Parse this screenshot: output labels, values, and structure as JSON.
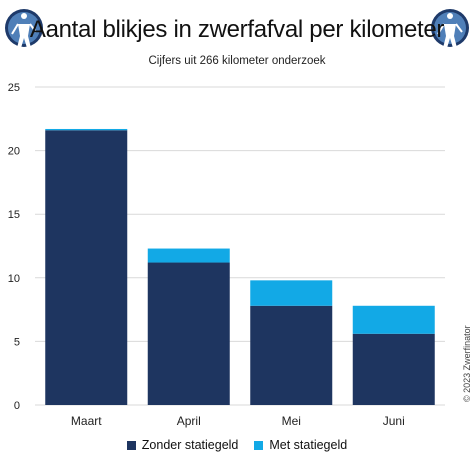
{
  "header": {
    "title": "Aantal blikjes in zwerfafval per kilometer",
    "subtitle": "Cijfers uit  266 kilometer onderzoek"
  },
  "credit": "© 2023 Zwerfinator",
  "colors": {
    "zonder": "#1e3560",
    "met": "#12a9e6",
    "grid": "#d9d9d9"
  },
  "chart_data": {
    "type": "bar",
    "stacked": true,
    "categories": [
      "Maart",
      "April",
      "Mei",
      "Juni"
    ],
    "series": [
      {
        "name": "Zonder statiegeld",
        "values": [
          21.6,
          11.2,
          7.8,
          5.6
        ]
      },
      {
        "name": "Met statiegeld",
        "values": [
          0.1,
          1.1,
          2.0,
          2.2
        ]
      }
    ],
    "ylim": [
      0,
      25
    ],
    "yticks": [
      0,
      5,
      10,
      15,
      20,
      25
    ],
    "grid": true,
    "legend_position": "bottom"
  }
}
